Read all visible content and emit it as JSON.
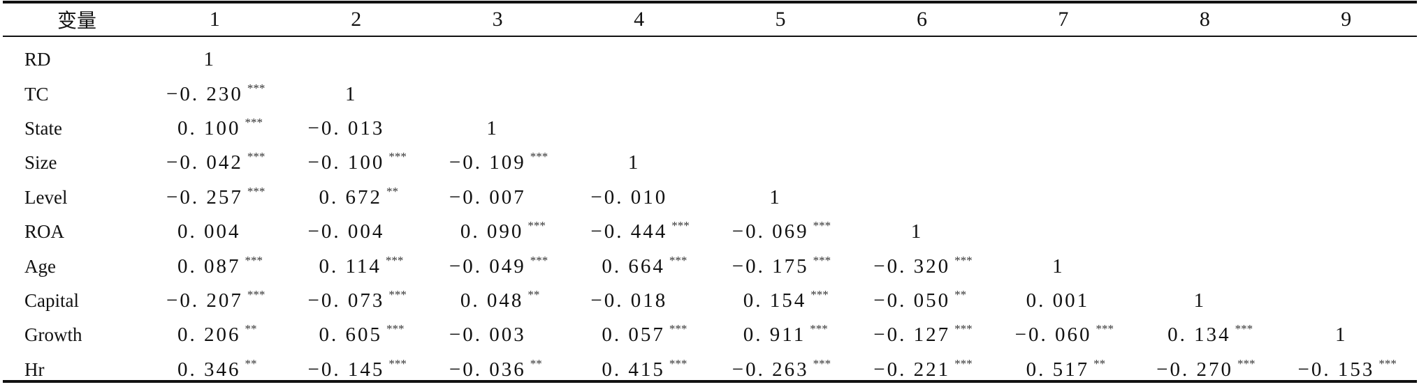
{
  "table": {
    "header": {
      "variable_label": "变量",
      "columns": [
        "1",
        "2",
        "3",
        "4",
        "5",
        "6",
        "7",
        "8",
        "9"
      ]
    },
    "rows": [
      {
        "name": "RD",
        "cells": [
          {
            "v": "1",
            "s": ""
          }
        ]
      },
      {
        "name": "TC",
        "cells": [
          {
            "v": "−0. 230",
            "s": "***"
          },
          {
            "v": "1",
            "s": ""
          }
        ]
      },
      {
        "name": "State",
        "cells": [
          {
            "v": "0. 100",
            "s": "***"
          },
          {
            "v": "−0. 013",
            "s": ""
          },
          {
            "v": "1",
            "s": ""
          }
        ]
      },
      {
        "name": "Size",
        "cells": [
          {
            "v": "−0. 042",
            "s": "***"
          },
          {
            "v": "−0. 100",
            "s": "***"
          },
          {
            "v": "−0. 109",
            "s": "***"
          },
          {
            "v": "1",
            "s": ""
          }
        ]
      },
      {
        "name": "Level",
        "cells": [
          {
            "v": "−0. 257",
            "s": "***"
          },
          {
            "v": "0. 672",
            "s": "**"
          },
          {
            "v": "−0. 007",
            "s": ""
          },
          {
            "v": "−0. 010",
            "s": ""
          },
          {
            "v": "1",
            "s": ""
          }
        ]
      },
      {
        "name": "ROA",
        "cells": [
          {
            "v": "0. 004",
            "s": ""
          },
          {
            "v": "−0. 004",
            "s": ""
          },
          {
            "v": "0. 090",
            "s": "***"
          },
          {
            "v": "−0. 444",
            "s": "***"
          },
          {
            "v": "−0. 069",
            "s": "***"
          },
          {
            "v": "1",
            "s": ""
          }
        ]
      },
      {
        "name": "Age",
        "cells": [
          {
            "v": "0. 087",
            "s": "***"
          },
          {
            "v": "0. 114",
            "s": "***"
          },
          {
            "v": "−0. 049",
            "s": "***"
          },
          {
            "v": "0. 664",
            "s": "***"
          },
          {
            "v": "−0. 175",
            "s": "***"
          },
          {
            "v": "−0. 320",
            "s": "***"
          },
          {
            "v": "1",
            "s": ""
          }
        ]
      },
      {
        "name": "Capital",
        "cells": [
          {
            "v": "−0. 207",
            "s": "***"
          },
          {
            "v": "−0. 073",
            "s": "***"
          },
          {
            "v": "0. 048",
            "s": "**"
          },
          {
            "v": "−0. 018",
            "s": ""
          },
          {
            "v": "0. 154",
            "s": "***"
          },
          {
            "v": "−0. 050",
            "s": "**"
          },
          {
            "v": "0. 001",
            "s": ""
          },
          {
            "v": "1",
            "s": ""
          }
        ]
      },
      {
        "name": "Growth",
        "cells": [
          {
            "v": "0. 206",
            "s": "**"
          },
          {
            "v": "0. 605",
            "s": "***"
          },
          {
            "v": "−0. 003",
            "s": ""
          },
          {
            "v": "0. 057",
            "s": "***"
          },
          {
            "v": "0. 911",
            "s": "***"
          },
          {
            "v": "−0. 127",
            "s": "***"
          },
          {
            "v": "−0. 060",
            "s": "***"
          },
          {
            "v": "0. 134",
            "s": "***"
          },
          {
            "v": "1",
            "s": ""
          }
        ]
      },
      {
        "name": "Hr",
        "cells": [
          {
            "v": "0. 346",
            "s": "**"
          },
          {
            "v": "−0. 145",
            "s": "***"
          },
          {
            "v": "−0. 036",
            "s": "**"
          },
          {
            "v": "0. 415",
            "s": "***"
          },
          {
            "v": "−0. 263",
            "s": "***"
          },
          {
            "v": "−0. 221",
            "s": "***"
          },
          {
            "v": "0. 517",
            "s": "**"
          },
          {
            "v": "−0. 270",
            "s": "***"
          },
          {
            "v": "−0. 153",
            "s": "***"
          }
        ]
      }
    ]
  }
}
